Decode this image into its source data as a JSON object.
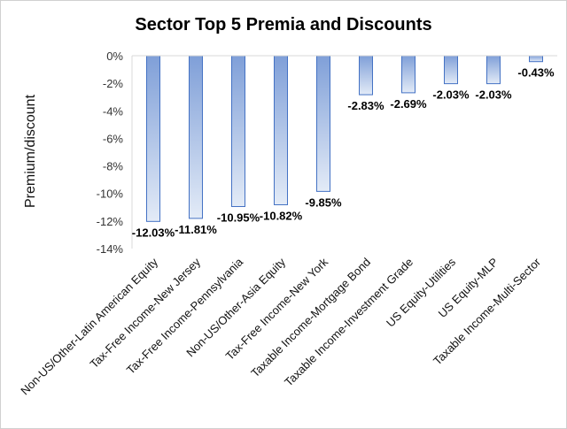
{
  "chart_data": {
    "type": "bar",
    "title": "Sector Top 5 Premia and Discounts",
    "xlabel": "",
    "ylabel": "Premium/discount",
    "ylim": [
      -14,
      0
    ],
    "yticks": [
      0,
      -2,
      -4,
      -6,
      -8,
      -10,
      -12,
      -14
    ],
    "ytick_labels": [
      "0%",
      "-2%",
      "-4%",
      "-6%",
      "-8%",
      "-10%",
      "-12%",
      "-14%"
    ],
    "grid": false,
    "legend": "none",
    "categories": [
      "Non-US/Other-Latin American Equity",
      "Tax-Free Income-New Jersey",
      "Tax-Free Income-Pennsylvania",
      "Non-US/Other-Asia Equity",
      "Tax-Free Income-New York",
      "Taxable Income-Mortgage Bond",
      "Taxable Income-Investment Grade",
      "US Equity-Utilities",
      "US Equity-MLP",
      "Taxable Income-Multi-Sector"
    ],
    "values": [
      -12.03,
      -11.81,
      -10.95,
      -10.82,
      -9.85,
      -2.83,
      -2.69,
      -2.03,
      -2.03,
      -0.43
    ],
    "data_labels": [
      "-12.03%",
      "-11.81%",
      "-10.95%",
      "-10.82%",
      "-9.85%",
      "-2.83%",
      "-2.69%",
      "-2.03%",
      "-2.03%",
      "-0.43%"
    ],
    "colors": {
      "bar_top": "#7f9fd8",
      "bar_bottom": "#e3ebf7",
      "bar_border": "#4472c4",
      "axis": "#d9d9d9"
    }
  }
}
